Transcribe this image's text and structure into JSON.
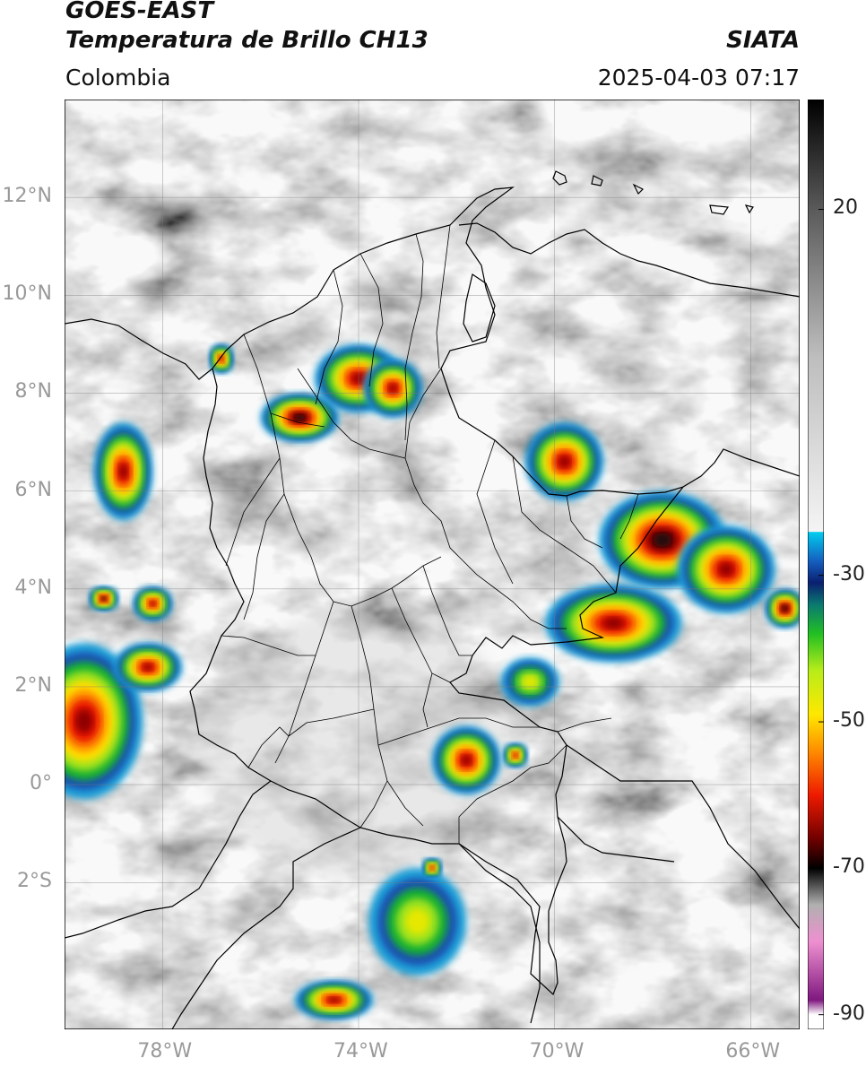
{
  "header": {
    "satellite": "GOES-EAST",
    "product": "Temperatura de Brillo CH13",
    "region": "Colombia",
    "agency": "SIATA",
    "timestamp": "2025-04-03 07:17"
  },
  "map": {
    "lon_range": [
      -80,
      -65
    ],
    "lat_range": [
      -5,
      14
    ],
    "lat_ticks": [
      {
        "value": 12,
        "label": "12°N"
      },
      {
        "value": 10,
        "label": "10°N"
      },
      {
        "value": 8,
        "label": "8°N"
      },
      {
        "value": 6,
        "label": "6°N"
      },
      {
        "value": 4,
        "label": "4°N"
      },
      {
        "value": 2,
        "label": "2°N"
      },
      {
        "value": 0,
        "label": "0°"
      },
      {
        "value": -2,
        "label": "2°S"
      }
    ],
    "lon_ticks": [
      {
        "value": -78,
        "label": "78°W"
      },
      {
        "value": -74,
        "label": "74°W"
      },
      {
        "value": -70,
        "label": "70°W"
      },
      {
        "value": -66,
        "label": "66°W"
      }
    ],
    "storm_cells": [
      {
        "lon": -75.2,
        "lat": 7.5,
        "rx": 0.8,
        "ry": 0.5,
        "core": "dark"
      },
      {
        "lon": -74.0,
        "lat": 8.3,
        "rx": 0.9,
        "ry": 0.7,
        "core": "red"
      },
      {
        "lon": -73.3,
        "lat": 8.1,
        "rx": 0.6,
        "ry": 0.6,
        "core": "red"
      },
      {
        "lon": -76.8,
        "lat": 8.7,
        "rx": 0.25,
        "ry": 0.3,
        "core": "red"
      },
      {
        "lon": -78.8,
        "lat": 6.4,
        "rx": 0.6,
        "ry": 1.0,
        "core": "red"
      },
      {
        "lon": -79.2,
        "lat": 3.8,
        "rx": 0.3,
        "ry": 0.25,
        "core": "dark"
      },
      {
        "lon": -78.2,
        "lat": 3.7,
        "rx": 0.4,
        "ry": 0.35,
        "core": "red"
      },
      {
        "lon": -79.6,
        "lat": 1.3,
        "rx": 1.2,
        "ry": 1.6,
        "core": "red"
      },
      {
        "lon": -78.3,
        "lat": 2.4,
        "rx": 0.7,
        "ry": 0.5,
        "core": "red"
      },
      {
        "lon": -71.8,
        "lat": 0.5,
        "rx": 0.7,
        "ry": 0.7,
        "core": "red"
      },
      {
        "lon": -72.8,
        "lat": -2.8,
        "rx": 1.0,
        "ry": 1.1,
        "core": "green"
      },
      {
        "lon": -69.8,
        "lat": 6.6,
        "rx": 0.8,
        "ry": 0.8,
        "core": "red"
      },
      {
        "lon": -67.8,
        "lat": 5.0,
        "rx": 1.3,
        "ry": 1.0,
        "core": "dark"
      },
      {
        "lon": -66.5,
        "lat": 4.4,
        "rx": 1.0,
        "ry": 0.9,
        "core": "red"
      },
      {
        "lon": -68.8,
        "lat": 3.3,
        "rx": 1.4,
        "ry": 0.8,
        "core": "red"
      },
      {
        "lon": -70.5,
        "lat": 2.1,
        "rx": 0.6,
        "ry": 0.5,
        "core": "green"
      },
      {
        "lon": -65.3,
        "lat": 3.6,
        "rx": 0.4,
        "ry": 0.4,
        "core": "dark"
      },
      {
        "lon": -74.5,
        "lat": -4.4,
        "rx": 0.8,
        "ry": 0.4,
        "core": "red"
      },
      {
        "lon": -72.5,
        "lat": -1.7,
        "rx": 0.2,
        "ry": 0.2,
        "core": "red"
      },
      {
        "lon": -70.8,
        "lat": 0.6,
        "rx": 0.25,
        "ry": 0.25,
        "core": "red"
      }
    ]
  },
  "colorbar": {
    "range": [
      -92,
      35
    ],
    "ticks": [
      {
        "value": 20,
        "label": "20"
      },
      {
        "value": -30,
        "label": "-30"
      },
      {
        "value": -50,
        "label": "-50"
      },
      {
        "value": -70,
        "label": "-70"
      },
      {
        "value": -90,
        "label": "-90"
      }
    ],
    "stops": [
      {
        "value": 35,
        "color": "#000000"
      },
      {
        "value": 20,
        "color": "#5a5a5a"
      },
      {
        "value": 0,
        "color": "#bdbdbd"
      },
      {
        "value": -24,
        "color": "#f4f4f4"
      },
      {
        "value": -24.1,
        "color": "#00ccee"
      },
      {
        "value": -28,
        "color": "#1560c0"
      },
      {
        "value": -31,
        "color": "#0a1f70"
      },
      {
        "value": -34,
        "color": "#0a7a70"
      },
      {
        "value": -38,
        "color": "#22c022"
      },
      {
        "value": -43,
        "color": "#b8ec1a"
      },
      {
        "value": -49,
        "color": "#ffe800"
      },
      {
        "value": -54,
        "color": "#ff8c00"
      },
      {
        "value": -60,
        "color": "#ee1a00"
      },
      {
        "value": -66,
        "color": "#700000"
      },
      {
        "value": -70,
        "color": "#000000"
      },
      {
        "value": -75,
        "color": "#b0b0b0"
      },
      {
        "value": -80,
        "color": "#ee90d0"
      },
      {
        "value": -88,
        "color": "#801880"
      },
      {
        "value": -90,
        "color": "#ffffff"
      }
    ]
  },
  "colors": {
    "frame": "#000000",
    "grid": "#7a7a7a",
    "boundary": "#000000",
    "axis_text": "#999999"
  }
}
